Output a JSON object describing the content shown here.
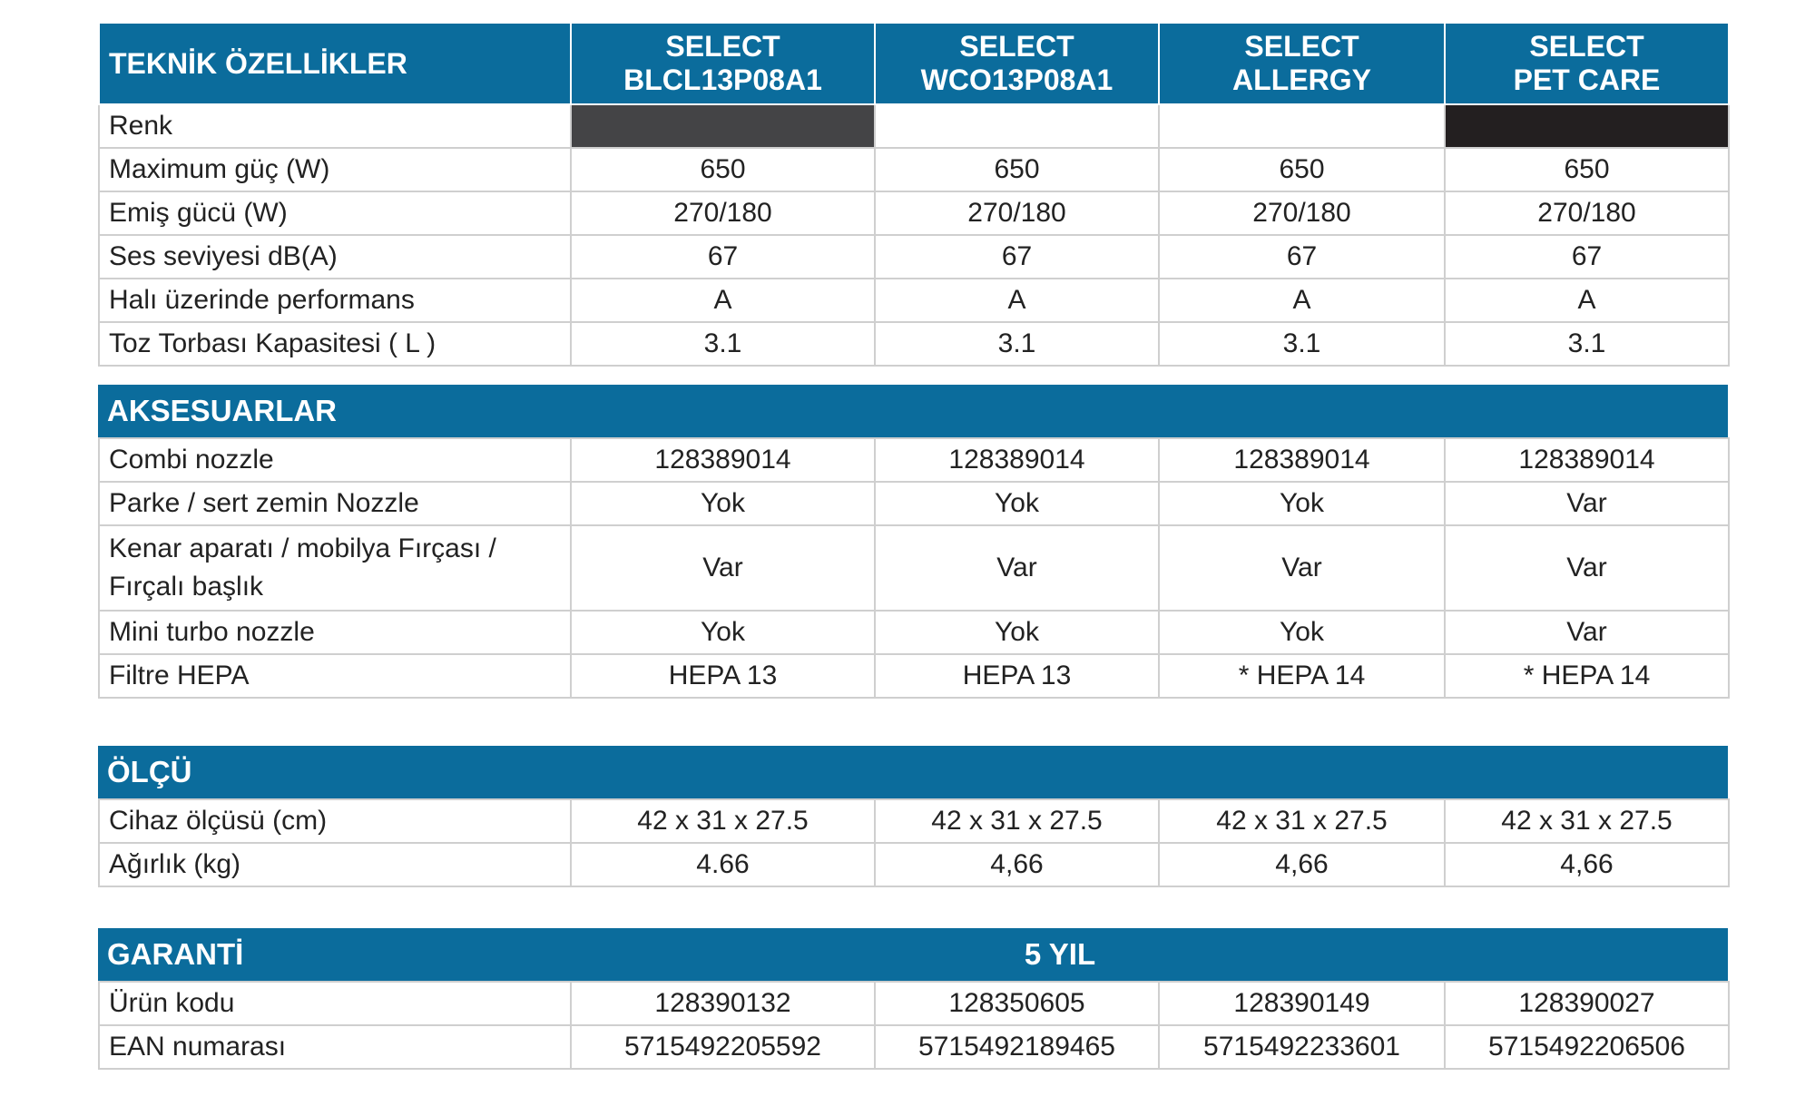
{
  "colors": {
    "header_blue": "#0b6c9c",
    "swatch_dark_grey": "#444446",
    "swatch_black": "#231f20"
  },
  "specs": {
    "title": "TEKNİK ÖZELLİKLER",
    "products": [
      {
        "line1": "SELECT",
        "line2": "BLCL13P08A1"
      },
      {
        "line1": "SELECT",
        "line2": "WCO13P08A1"
      },
      {
        "line1": "SELECT",
        "line2": "ALLERGY"
      },
      {
        "line1": "SELECT",
        "line2": "PET CARE"
      }
    ],
    "renk_label": "Renk",
    "rows": [
      {
        "label": "Maximum güç (W)",
        "values": [
          "650",
          "650",
          "650",
          "650"
        ]
      },
      {
        "label": "Emiş gücü (W)",
        "values": [
          "270/180",
          "270/180",
          "270/180",
          "270/180"
        ]
      },
      {
        "label": "Ses seviyesi dB(A)",
        "values": [
          "67",
          "67",
          "67",
          "67"
        ]
      },
      {
        "label": "Halı üzerinde performans",
        "values": [
          "A",
          "A",
          "A",
          "A"
        ]
      },
      {
        "label": "Toz Torbası Kapasitesi ( L )",
        "values": [
          "3.1",
          "3.1",
          "3.1",
          "3.1"
        ]
      }
    ]
  },
  "accessories": {
    "title": "AKSESUARLAR",
    "rows": [
      {
        "label": "Combi nozzle",
        "values": [
          "128389014",
          "128389014",
          "128389014",
          "128389014"
        ]
      },
      {
        "label": "Parke / sert zemin Nozzle",
        "values": [
          "Yok",
          "Yok",
          "Yok",
          "Var"
        ]
      },
      {
        "label": "Kenar aparatı / mobilya Fırçası / Fırçalı başlık",
        "values": [
          "Var",
          "Var",
          "Var",
          "Var"
        ]
      },
      {
        "label": "Mini turbo nozzle",
        "values": [
          "Yok",
          "Yok",
          "Yok",
          "Var"
        ]
      },
      {
        "label": "Filtre HEPA",
        "values": [
          "HEPA 13",
          "HEPA 13",
          "* HEPA 14",
          "* HEPA 14"
        ]
      }
    ]
  },
  "size": {
    "title": "ÖLÇÜ",
    "rows": [
      {
        "label": "Cihaz ölçüsü (cm)",
        "values": [
          "42 x 31 x 27.5",
          "42 x 31 x 27.5",
          "42 x 31 x 27.5",
          "42 x 31 x 27.5"
        ]
      },
      {
        "label": "Ağırlık (kg)",
        "values": [
          "4.66",
          "4,66",
          "4,66",
          "4,66"
        ]
      }
    ]
  },
  "warranty": {
    "title": "GARANTİ",
    "value": "5 YIL",
    "rows": [
      {
        "label": "Ürün kodu",
        "values": [
          "128390132",
          "128350605",
          "128390149",
          "128390027"
        ]
      },
      {
        "label": "EAN numarası",
        "values": [
          "5715492205592",
          "5715492189465",
          "5715492233601",
          "5715492206506"
        ]
      }
    ]
  }
}
